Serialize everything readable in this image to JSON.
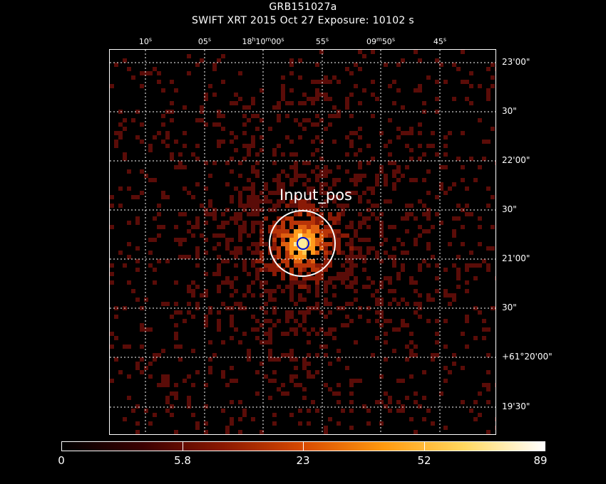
{
  "header": {
    "title": "GRB151027a",
    "subtitle": "SWIFT XRT   2015 Oct 27    Exposure: 10102 s"
  },
  "ra_ticks": [
    {
      "main": "10",
      "sup": "s"
    },
    {
      "main": "05",
      "sup": "s"
    },
    {
      "main": "18",
      "sup": "h",
      "main2": "10",
      "sup2": "m",
      "main3": "00",
      "sup3": "s"
    },
    {
      "main": "55",
      "sup": "s"
    },
    {
      "main": "09",
      "sup": "m",
      "main2": "50",
      "sup2": "s"
    },
    {
      "main": "45",
      "sup": "s"
    }
  ],
  "dec_ticks": [
    "23'00\"",
    "30\"",
    "22'00\"",
    "30\"",
    "21'00\"",
    "30\"",
    "+61°20'00\"",
    "19'30\""
  ],
  "source_region": {
    "label": "Input_pos",
    "outer_color": "#ffffff",
    "inner_color": "#0010d0"
  },
  "colorbar": {
    "labels": [
      "0",
      "5.8",
      "23",
      "52",
      "89"
    ],
    "min": 0,
    "max": 89,
    "colors": [
      "#000000",
      "#3a0000",
      "#8a1800",
      "#d84a00",
      "#ff9a10",
      "#ffd860",
      "#ffffff"
    ]
  }
}
